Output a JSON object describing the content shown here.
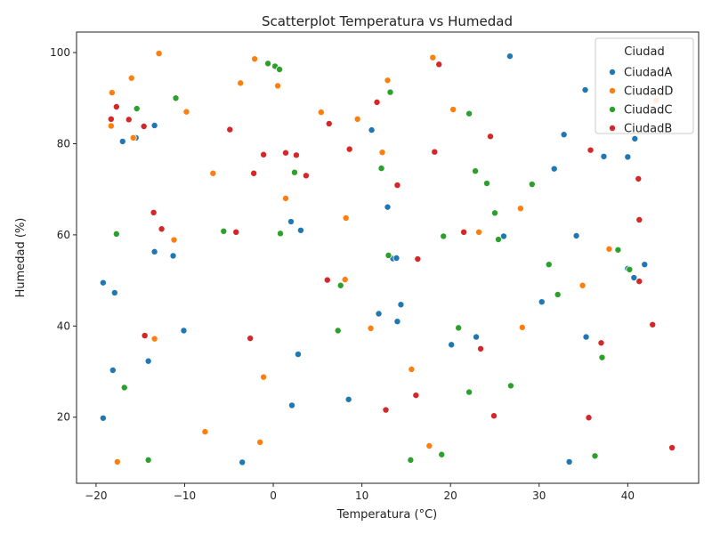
{
  "chart_data": {
    "type": "scatter",
    "title": "Scatterplot Temperatura vs Humedad",
    "xlabel": "Temperatura (°C)",
    "ylabel": "Humedad (%)",
    "xlim": [
      -22.2,
      48.0
    ],
    "ylim": [
      5.5,
      104.5
    ],
    "xticks": [
      -20,
      -10,
      0,
      10,
      20,
      30,
      40
    ],
    "yticks": [
      20,
      40,
      60,
      80,
      100
    ],
    "grid": false,
    "legend": {
      "title": "Ciudad",
      "position": "top-right"
    },
    "series": [
      {
        "name": "CiudadA",
        "color": "#1f77b4",
        "points": [
          [
            26.7,
            99.2
          ],
          [
            35.2,
            91.8
          ],
          [
            11.1,
            83.0
          ],
          [
            -13.4,
            84.0
          ],
          [
            -15.5,
            81.3
          ],
          [
            -17.0,
            80.5
          ],
          [
            32.8,
            82.0
          ],
          [
            40.8,
            81.1
          ],
          [
            31.7,
            74.5
          ],
          [
            37.3,
            77.2
          ],
          [
            40.0,
            77.1
          ],
          [
            12.9,
            66.1
          ],
          [
            2.0,
            62.9
          ],
          [
            3.1,
            61.0
          ],
          [
            -13.4,
            56.3
          ],
          [
            -11.3,
            55.4
          ],
          [
            13.5,
            54.8
          ],
          [
            13.9,
            54.9
          ],
          [
            26.0,
            59.7
          ],
          [
            34.2,
            59.8
          ],
          [
            40.0,
            52.6
          ],
          [
            40.7,
            50.6
          ],
          [
            41.9,
            53.5
          ],
          [
            -19.2,
            49.5
          ],
          [
            -17.9,
            47.3
          ],
          [
            14.4,
            44.7
          ],
          [
            11.9,
            42.7
          ],
          [
            14.0,
            41.0
          ],
          [
            30.3,
            45.3
          ],
          [
            -10.1,
            39.0
          ],
          [
            22.9,
            37.6
          ],
          [
            35.3,
            37.6
          ],
          [
            20.1,
            35.9
          ],
          [
            -14.1,
            32.3
          ],
          [
            -18.1,
            30.3
          ],
          [
            2.8,
            33.8
          ],
          [
            2.1,
            22.6
          ],
          [
            8.5,
            23.9
          ],
          [
            -19.2,
            19.8
          ],
          [
            -3.5,
            10.1
          ],
          [
            33.4,
            10.2
          ]
        ]
      },
      {
        "name": "CiudadD",
        "color": "#ff7f0e",
        "points": [
          [
            -12.9,
            99.8
          ],
          [
            -2.1,
            98.6
          ],
          [
            18.0,
            98.9
          ],
          [
            -16.0,
            94.4
          ],
          [
            -3.7,
            93.3
          ],
          [
            0.5,
            92.7
          ],
          [
            12.9,
            93.9
          ],
          [
            -18.2,
            91.2
          ],
          [
            -18.3,
            83.9
          ],
          [
            -15.8,
            81.3
          ],
          [
            -9.8,
            87.0
          ],
          [
            5.4,
            86.9
          ],
          [
            9.5,
            85.4
          ],
          [
            20.3,
            87.5
          ],
          [
            43.2,
            89.5
          ],
          [
            12.3,
            78.1
          ],
          [
            -6.8,
            73.5
          ],
          [
            1.4,
            68.0
          ],
          [
            27.9,
            65.8
          ],
          [
            8.2,
            63.7
          ],
          [
            -11.2,
            58.9
          ],
          [
            23.2,
            60.6
          ],
          [
            37.9,
            56.9
          ],
          [
            8.1,
            50.2
          ],
          [
            34.9,
            48.9
          ],
          [
            11.0,
            39.5
          ],
          [
            28.1,
            39.7
          ],
          [
            -13.4,
            37.2
          ],
          [
            15.6,
            30.5
          ],
          [
            -1.1,
            28.8
          ],
          [
            -7.7,
            16.8
          ],
          [
            -1.5,
            14.5
          ],
          [
            17.6,
            13.7
          ],
          [
            -17.6,
            10.2
          ]
        ]
      },
      {
        "name": "CiudadC",
        "color": "#2ca02c",
        "points": [
          [
            -0.6,
            97.6
          ],
          [
            0.2,
            97.0
          ],
          [
            0.7,
            96.3
          ],
          [
            13.2,
            91.3
          ],
          [
            -11.0,
            90.0
          ],
          [
            -15.4,
            87.7
          ],
          [
            22.1,
            86.6
          ],
          [
            2.4,
            73.7
          ],
          [
            12.2,
            74.6
          ],
          [
            22.8,
            74.0
          ],
          [
            24.1,
            71.3
          ],
          [
            29.2,
            71.1
          ],
          [
            25.0,
            64.8
          ],
          [
            -5.6,
            60.8
          ],
          [
            0.8,
            60.3
          ],
          [
            -17.7,
            60.2
          ],
          [
            19.2,
            59.7
          ],
          [
            25.4,
            59.0
          ],
          [
            13.0,
            55.5
          ],
          [
            31.1,
            53.5
          ],
          [
            38.9,
            56.7
          ],
          [
            40.2,
            52.4
          ],
          [
            7.6,
            48.9
          ],
          [
            32.1,
            46.9
          ],
          [
            7.3,
            39.0
          ],
          [
            20.9,
            39.6
          ],
          [
            37.1,
            33.1
          ],
          [
            -16.8,
            26.5
          ],
          [
            22.1,
            25.5
          ],
          [
            26.8,
            26.9
          ],
          [
            -14.1,
            10.6
          ],
          [
            15.5,
            10.6
          ],
          [
            19.0,
            11.8
          ],
          [
            36.3,
            11.5
          ]
        ]
      },
      {
        "name": "CiudadB",
        "color": "#d62728",
        "points": [
          [
            18.7,
            97.4
          ],
          [
            11.7,
            89.1
          ],
          [
            -17.7,
            88.1
          ],
          [
            -18.3,
            85.4
          ],
          [
            -16.3,
            85.3
          ],
          [
            -14.6,
            83.8
          ],
          [
            -4.9,
            83.1
          ],
          [
            6.3,
            84.4
          ],
          [
            24.5,
            81.6
          ],
          [
            -1.1,
            77.6
          ],
          [
            1.4,
            78.0
          ],
          [
            2.6,
            77.5
          ],
          [
            8.6,
            78.8
          ],
          [
            18.2,
            78.2
          ],
          [
            35.8,
            78.6
          ],
          [
            -2.2,
            73.5
          ],
          [
            3.7,
            73.0
          ],
          [
            14.0,
            70.9
          ],
          [
            41.2,
            72.3
          ],
          [
            -13.5,
            64.9
          ],
          [
            -12.6,
            61.3
          ],
          [
            -4.2,
            60.6
          ],
          [
            21.5,
            60.6
          ],
          [
            41.3,
            63.3
          ],
          [
            16.3,
            54.7
          ],
          [
            6.1,
            50.1
          ],
          [
            41.3,
            49.8
          ],
          [
            -14.5,
            37.9
          ],
          [
            -2.6,
            37.3
          ],
          [
            37.0,
            36.3
          ],
          [
            42.8,
            40.3
          ],
          [
            23.4,
            35.0
          ],
          [
            16.1,
            24.8
          ],
          [
            12.7,
            21.6
          ],
          [
            24.9,
            20.3
          ],
          [
            35.6,
            19.9
          ],
          [
            45.0,
            13.3
          ]
        ]
      }
    ]
  }
}
